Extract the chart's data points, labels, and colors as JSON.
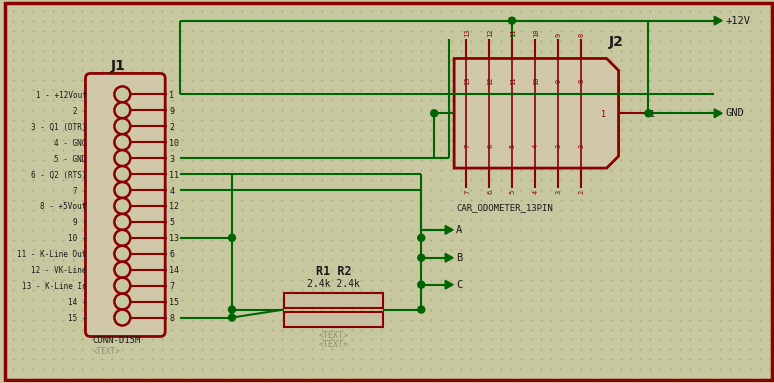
{
  "bg_color": "#C8C8A0",
  "border_color": "#8B0000",
  "wire_color": "#006400",
  "component_color": "#8B0000",
  "text_color": "#1a1a1a",
  "j1_label": "J1",
  "j1_sub": "CONN-D15M",
  "j2_label": "J2",
  "j2_sub": "CAR_ODOMETER_13PIN",
  "r_label": "R1 R2",
  "r_val": "2.4k 2.4k",
  "pin_labels_left": [
    "1 - +12Vout",
    "2 -",
    "3 - Q1 (DTR)",
    "4 - GNG",
    "5 - GND",
    "6 - Q2 (RTS)",
    "7 -",
    "8 - +5Vout",
    "9 -",
    "10 -",
    "11 - K-Line Out",
    "12 - VK-Line",
    "13 - K-Line In",
    "14 -",
    "15 -"
  ],
  "pin_numbers": [
    1,
    9,
    2,
    10,
    3,
    11,
    4,
    12,
    5,
    13,
    6,
    14,
    7,
    15,
    8
  ],
  "power_labels": [
    "+12V",
    "GND"
  ],
  "output_labels": [
    "A",
    "B",
    "C"
  ],
  "resistor_fill": "#C8C0A0",
  "text_gray": "#909070"
}
